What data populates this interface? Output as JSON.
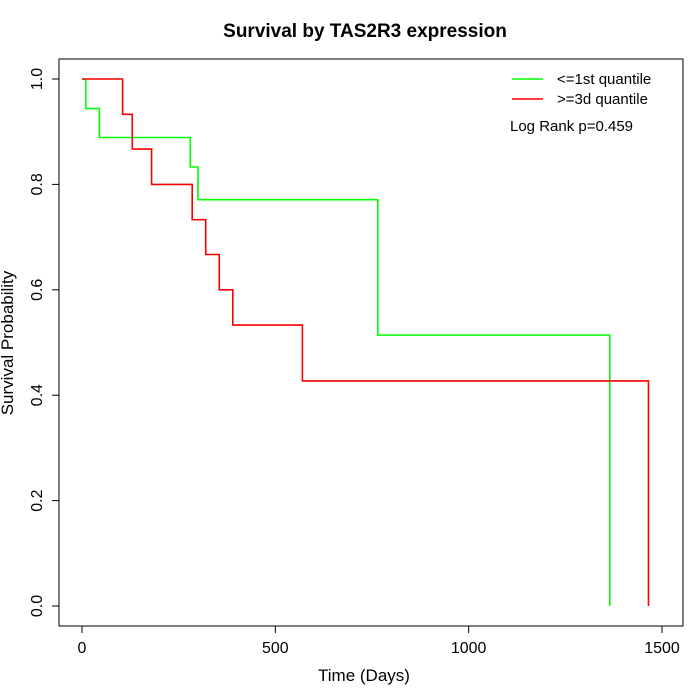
{
  "chart_data": {
    "type": "line",
    "title": "Survival by TAS2R3 expression",
    "xlabel": "Time (Days)",
    "ylabel": "Survival Probability",
    "xlim": [
      0,
      1500
    ],
    "ylim": [
      0,
      1
    ],
    "xticks": [
      0,
      500,
      1000,
      1500
    ],
    "yticks": [
      0.0,
      0.2,
      0.4,
      0.6,
      0.8,
      1.0
    ],
    "xtick_labels": [
      "0",
      "500",
      "1000",
      "1500"
    ],
    "ytick_labels": [
      "0.0",
      "0.2",
      "0.4",
      "0.6",
      "0.8",
      "1.0"
    ],
    "step": true,
    "grid": false,
    "legend_position": "top-right",
    "annotation": "Log Rank p=0.459",
    "series": [
      {
        "name": "<=1st quantile",
        "color": "#00ff00",
        "x": [
          0,
          10,
          45,
          280,
          300,
          765,
          1365,
          1365
        ],
        "y": [
          1.0,
          0.944,
          0.889,
          0.833,
          0.771,
          0.514,
          0.514,
          0.0
        ]
      },
      {
        "name": ">=3d quantile",
        "color": "#ff0000",
        "x": [
          0,
          105,
          130,
          180,
          285,
          320,
          355,
          390,
          570,
          1465,
          1465
        ],
        "y": [
          1.0,
          0.933,
          0.867,
          0.8,
          0.733,
          0.667,
          0.6,
          0.533,
          0.427,
          0.427,
          0.0
        ]
      }
    ]
  }
}
